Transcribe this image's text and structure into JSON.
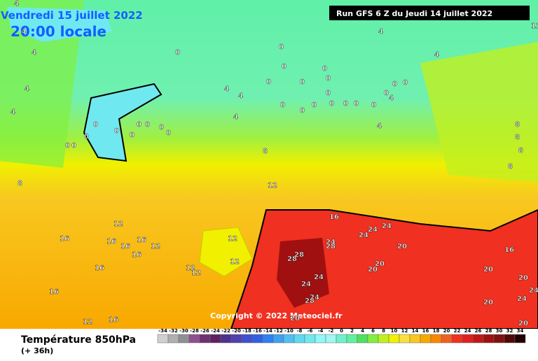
{
  "header": {
    "date": "Vendredi 15 juillet 2022",
    "time": "20:00 locale",
    "run": "Run GFS 6 Z du Jeudi 14 juillet 2022"
  },
  "map": {
    "contour_labels": [
      0,
      0,
      0,
      0,
      0,
      0,
      0,
      0,
      0,
      0,
      0,
      0,
      0,
      0,
      0,
      0,
      0,
      0,
      0,
      0,
      0,
      0,
      0,
      0,
      0,
      0,
      0,
      0,
      4,
      4,
      4,
      4,
      4,
      4,
      4,
      4,
      4,
      4,
      4,
      4,
      8,
      8,
      8,
      8,
      8,
      8,
      12,
      12,
      12,
      12,
      12,
      12,
      12,
      12,
      12,
      16,
      16,
      16,
      16,
      16,
      16,
      16,
      16,
      16,
      16,
      20,
      20,
      20,
      20,
      20,
      20,
      20,
      20,
      24,
      24,
      24,
      24,
      24,
      24,
      24,
      24,
      24,
      28,
      28,
      28,
      28
    ]
  },
  "footer": {
    "title": "Température 850hPa",
    "lead": "(+ 36h)",
    "copyright": "Copyright © 2022 Meteociel.fr"
  },
  "legend": {
    "values": [
      -34,
      -32,
      -30,
      -28,
      -26,
      -24,
      -22,
      -20,
      -18,
      -16,
      -14,
      -12,
      -10,
      -8,
      -6,
      -4,
      -2,
      0,
      2,
      4,
      6,
      8,
      10,
      12,
      14,
      16,
      18,
      20,
      22,
      24,
      26,
      28,
      30,
      32,
      34
    ],
    "colors": [
      "#d0d0d0",
      "#b0b0b0",
      "#909090",
      "#905090",
      "#703070",
      "#602060",
      "#503090",
      "#5040b0",
      "#4050d0",
      "#3060e0",
      "#3080f0",
      "#40a0f0",
      "#50c0f0",
      "#60d8f0",
      "#70e8f0",
      "#90f8f8",
      "#a0f8f0",
      "#70f0d0",
      "#60f0a0",
      "#50e060",
      "#80f040",
      "#c0f020",
      "#f0f000",
      "#f8e040",
      "#f8c820",
      "#f8a800",
      "#f88800",
      "#f06020",
      "#f03020",
      "#e02020",
      "#c01818",
      "#a01010",
      "#801010",
      "#500808",
      "#200000"
    ]
  }
}
